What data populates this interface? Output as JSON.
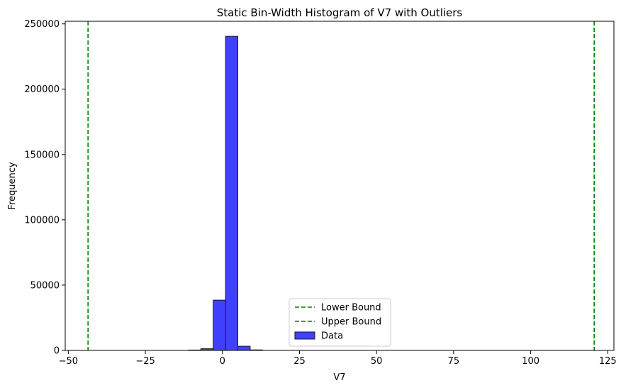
{
  "chart_data": {
    "type": "bar",
    "title": "Static Bin-Width Histogram of V7 with Outliers",
    "xlabel": "V7",
    "ylabel": "Frequency",
    "xlim": [
      -51,
      127
    ],
    "ylim": [
      0,
      252000
    ],
    "x_ticks": [
      -50,
      -25,
      0,
      25,
      50,
      75,
      100,
      125
    ],
    "y_ticks": [
      0,
      50000,
      100000,
      150000,
      200000,
      250000
    ],
    "bin_width": 4,
    "bins": [
      {
        "x0": -11,
        "x1": -7,
        "count": 300
      },
      {
        "x0": -7,
        "x1": -3,
        "count": 1300
      },
      {
        "x0": -3,
        "x1": 1,
        "count": 38500
      },
      {
        "x0": 1,
        "x1": 5,
        "count": 240500
      },
      {
        "x0": 5,
        "x1": 9,
        "count": 3200
      },
      {
        "x0": 9,
        "x1": 13,
        "count": 400
      }
    ],
    "bar_color": "#4040ff",
    "bar_edge_color": "#1a1a1a",
    "reference_lines": [
      {
        "name": "Lower Bound",
        "x": -43.6,
        "color": "#008000",
        "style": "dashed"
      },
      {
        "name": "Upper Bound",
        "x": 120.6,
        "color": "#008000",
        "style": "dashed"
      }
    ],
    "legend": {
      "placement": "lower-center",
      "entries": [
        {
          "label": "Lower Bound",
          "kind": "line",
          "color": "#008000"
        },
        {
          "label": "Upper Bound",
          "kind": "line",
          "color": "#008000"
        },
        {
          "label": "Data",
          "kind": "patch",
          "color": "#4040ff"
        }
      ]
    },
    "grid": false
  }
}
